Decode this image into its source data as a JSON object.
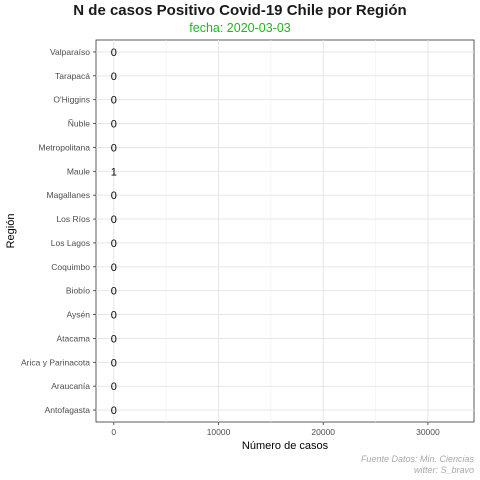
{
  "chart_data": {
    "type": "bar",
    "orientation": "horizontal",
    "title": "N de casos Positivo Covid-19 Chile por Región",
    "subtitle": "fecha: 2020-03-03",
    "xlabel": "Número de casos",
    "ylabel": "Región",
    "categories": [
      "Valparaíso",
      "Tarapacá",
      "O'Higgins",
      "Ñuble",
      "Metropolitana",
      "Maule",
      "Magallanes",
      "Los Ríos",
      "Los Lagos",
      "Coquimbo",
      "Biobío",
      "Aysén",
      "Atacama",
      "Arica y Parinacota",
      "Araucanía",
      "Antofagasta"
    ],
    "values": [
      0,
      0,
      0,
      0,
      0,
      1,
      0,
      0,
      0,
      0,
      0,
      0,
      0,
      0,
      0,
      0
    ],
    "x_ticks": [
      0,
      10000,
      20000,
      30000
    ],
    "x_tick_labels": [
      "0",
      "10000",
      "20000",
      "30000"
    ],
    "xlim": [
      -1700,
      34400
    ],
    "grid": true,
    "subtitle_color": "#22b422",
    "caption_lines": [
      "Fuente Datos: Min. Ciencias",
      "witter: S_bravo"
    ]
  }
}
